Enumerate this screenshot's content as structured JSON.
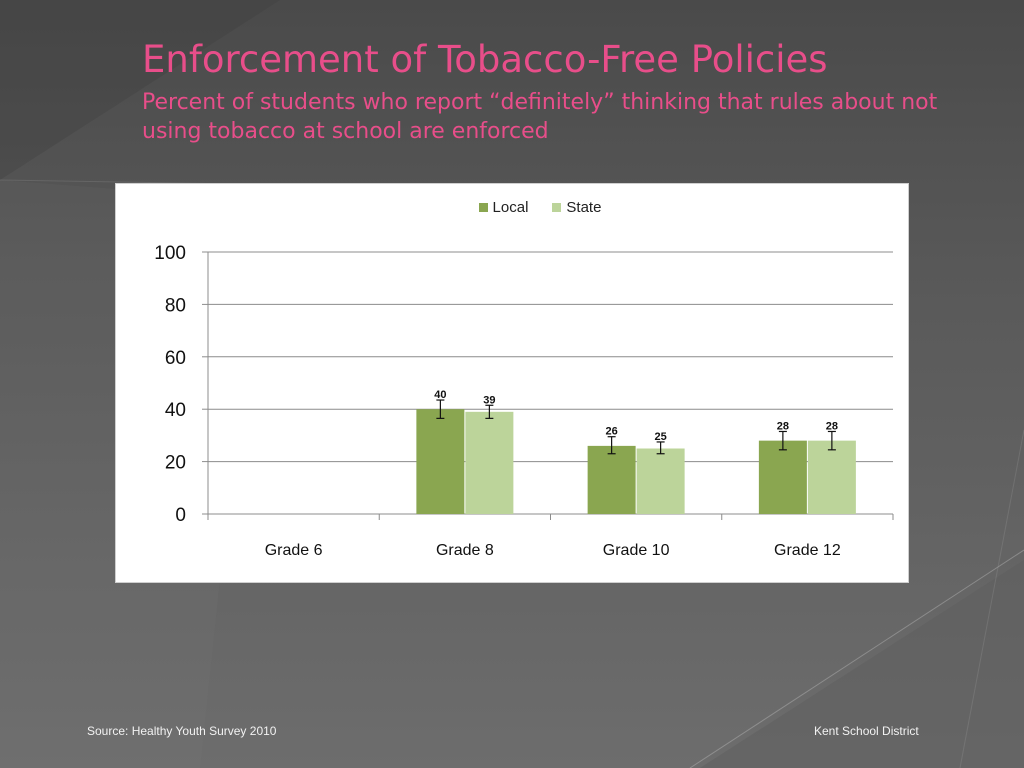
{
  "slide": {
    "title": "Enforcement of Tobacco-Free Policies",
    "subtitle": "Percent of students who report “definitely” thinking that rules about not using tobacco at school are enforced"
  },
  "footer": {
    "source": "Source: Healthy Youth Survey 2010",
    "organization": "Kent School District"
  },
  "colors": {
    "title": "#e84e8a",
    "local": "#8aa650",
    "state": "#bcd49a",
    "background": "#555555"
  },
  "chart_data": {
    "type": "bar",
    "title": "",
    "xlabel": "",
    "ylabel": "",
    "ylim": [
      0,
      100
    ],
    "yticks": [
      "0",
      "20",
      "40",
      "60",
      "80",
      "100"
    ],
    "categories": [
      "Grade 6",
      "Grade 8",
      "Grade 10",
      "Grade 12"
    ],
    "series": [
      {
        "name": "Local",
        "color": "#8aa650",
        "values": [
          null,
          40,
          26,
          28
        ],
        "labels": [
          "",
          "40",
          "26",
          "28"
        ],
        "error_low": [
          null,
          36.5,
          23,
          24.5
        ],
        "error_high": [
          null,
          43.5,
          29.5,
          31.5
        ]
      },
      {
        "name": "State",
        "color": "#bcd49a",
        "values": [
          null,
          39,
          25,
          28
        ],
        "labels": [
          "",
          "39",
          "25",
          "28"
        ],
        "error_low": [
          null,
          36.5,
          23,
          24.5
        ],
        "error_high": [
          null,
          41.5,
          27.5,
          31.5
        ]
      }
    ],
    "legend_position": "top-center",
    "grid": true
  }
}
